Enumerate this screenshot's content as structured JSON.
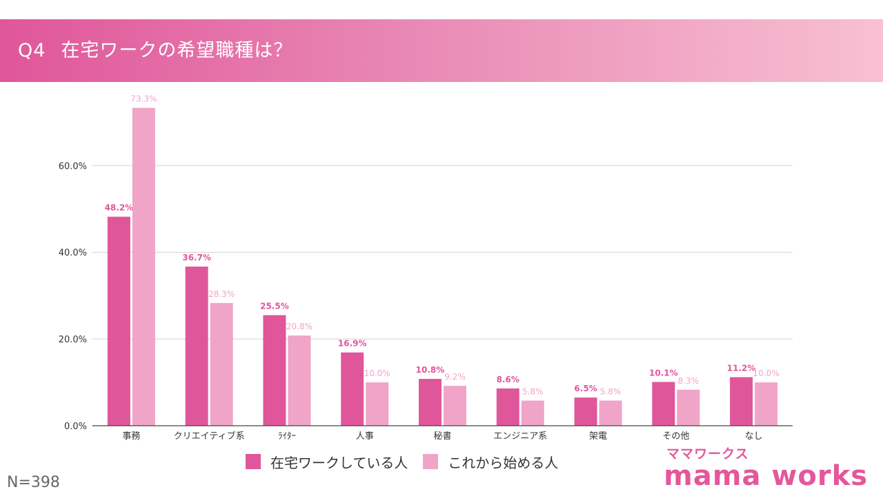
{
  "header": {
    "qnum": "Q4",
    "question": "在宅ワークの希望職種は？"
  },
  "colors": {
    "series1": "#e0569a",
    "series2": "#f0a4c8",
    "grid": "#d0d0d0",
    "axis": "#444444"
  },
  "legend": {
    "items": [
      "在宅ワークしている人",
      "これから始める人"
    ]
  },
  "sample_note": "N=398",
  "logo": {
    "kana": "ママワークス",
    "text": "mama works"
  },
  "chart_data": {
    "type": "bar",
    "title": "",
    "xlabel": "",
    "ylabel": "",
    "ylim": [
      0,
      73.3
    ],
    "yticks": [
      0,
      20,
      40,
      60
    ],
    "ytick_labels": [
      "0.0%",
      "20.0%",
      "40.0%",
      "60.0%"
    ],
    "grid": true,
    "legend_position": "bottom",
    "categories": [
      "事務",
      "クリエイティブ系",
      "ﾗｲﾀｰ",
      "人事",
      "秘書",
      "エンジニア系",
      "架電",
      "その他",
      "なし"
    ],
    "series": [
      {
        "name": "在宅ワークしている人",
        "values": [
          48.2,
          36.7,
          25.5,
          16.9,
          10.8,
          8.6,
          6.5,
          10.1,
          11.2
        ],
        "labels": [
          "48.2%",
          "36.7%",
          "25.5%",
          "16.9%",
          "10.8%",
          "8.6%",
          "6.5%",
          "10.1%",
          "11.2%"
        ]
      },
      {
        "name": "これから始める人",
        "values": [
          73.3,
          28.3,
          20.8,
          10.0,
          9.2,
          5.8,
          5.8,
          8.3,
          10.0
        ],
        "labels": [
          "73.3%",
          "28.3%",
          "20.8%",
          "10.0%",
          "9.2%",
          "5.8%",
          "5.8%",
          "8.3%",
          "10.0%"
        ]
      }
    ]
  }
}
